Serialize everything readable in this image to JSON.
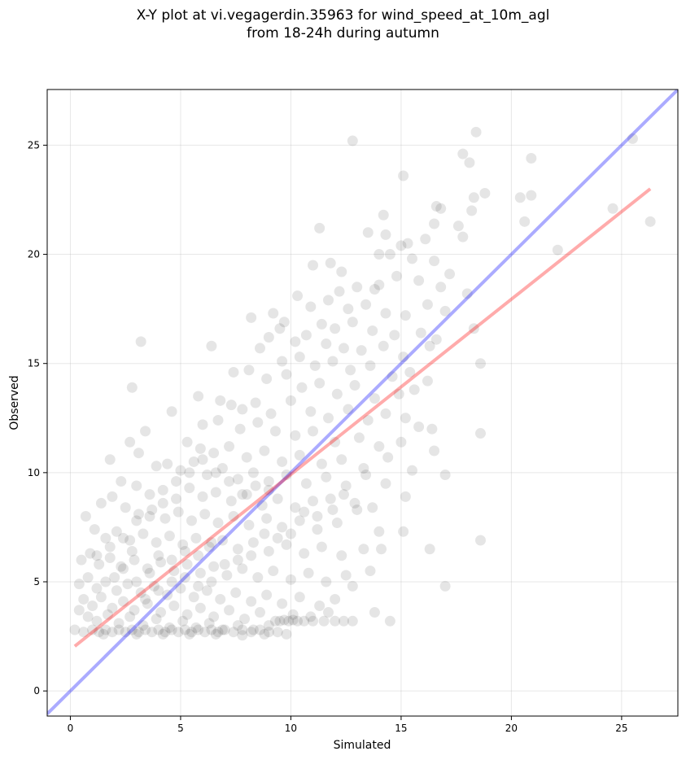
{
  "chart_data": {
    "type": "scatter",
    "title_lines": [
      "X-Y plot at vi.vegagerdin.35963 for wind_speed_at_10m_agl",
      "from 18-24h during autumn"
    ],
    "xlabel": "Simulated",
    "ylabel": "Observed",
    "xlim": [
      -1.05,
      27.55
    ],
    "ylim": [
      -1.15,
      27.55
    ],
    "xticks": [
      0,
      5,
      10,
      15,
      20,
      25
    ],
    "yticks": [
      0,
      5,
      10,
      15,
      20,
      25
    ],
    "grid": true,
    "colors": {
      "points": "#000000",
      "identity_line": "#0000ff",
      "fit_line": "#ff0000",
      "grid": "#b0b0b0"
    },
    "identity_line": {
      "x": [
        -1.05,
        27.55
      ],
      "y": [
        -1.05,
        27.55
      ]
    },
    "fit_line": {
      "x": [
        0.2,
        26.3
      ],
      "y": [
        2.05,
        23.0
      ]
    },
    "points": [
      [
        12.8,
        25.2
      ],
      [
        17.8,
        24.6
      ],
      [
        18.4,
        25.6
      ],
      [
        18.1,
        24.2
      ],
      [
        20.9,
        24.4
      ],
      [
        25.5,
        25.3
      ],
      [
        15.1,
        23.6
      ],
      [
        18.3,
        22.6
      ],
      [
        18.8,
        22.8
      ],
      [
        20.4,
        22.6
      ],
      [
        20.9,
        22.7
      ],
      [
        24.6,
        22.1
      ],
      [
        16.6,
        22.2
      ],
      [
        16.8,
        22.1
      ],
      [
        18.2,
        22.0
      ],
      [
        14.2,
        21.8
      ],
      [
        16.5,
        21.4
      ],
      [
        17.6,
        21.3
      ],
      [
        17.8,
        20.8
      ],
      [
        20.6,
        21.5
      ],
      [
        26.3,
        21.5
      ],
      [
        11.3,
        21.2
      ],
      [
        13.5,
        21.0
      ],
      [
        14.3,
        20.9
      ],
      [
        15.0,
        20.4
      ],
      [
        15.3,
        20.5
      ],
      [
        16.1,
        20.7
      ],
      [
        14.0,
        20.0
      ],
      [
        14.5,
        20.0
      ],
      [
        15.5,
        19.8
      ],
      [
        16.5,
        19.7
      ],
      [
        22.1,
        20.2
      ],
      [
        11.0,
        19.5
      ],
      [
        11.8,
        19.6
      ],
      [
        12.3,
        19.2
      ],
      [
        13.0,
        18.5
      ],
      [
        13.8,
        18.4
      ],
      [
        14.0,
        18.6
      ],
      [
        14.8,
        19.0
      ],
      [
        15.8,
        18.8
      ],
      [
        17.2,
        19.1
      ],
      [
        16.8,
        18.5
      ],
      [
        18.0,
        18.2
      ],
      [
        12.2,
        18.3
      ],
      [
        10.3,
        18.1
      ],
      [
        10.9,
        17.6
      ],
      [
        11.7,
        17.9
      ],
      [
        12.6,
        17.5
      ],
      [
        13.4,
        17.7
      ],
      [
        14.3,
        17.3
      ],
      [
        15.2,
        17.2
      ],
      [
        16.2,
        17.7
      ],
      [
        17.0,
        17.4
      ],
      [
        8.2,
        17.1
      ],
      [
        9.2,
        17.3
      ],
      [
        9.7,
        16.9
      ],
      [
        11.4,
        16.8
      ],
      [
        12.0,
        16.6
      ],
      [
        12.8,
        16.9
      ],
      [
        13.7,
        16.5
      ],
      [
        14.7,
        16.3
      ],
      [
        15.9,
        16.4
      ],
      [
        16.6,
        16.1
      ],
      [
        18.3,
        16.6
      ],
      [
        9.0,
        16.2
      ],
      [
        9.5,
        16.6
      ],
      [
        10.2,
        16.0
      ],
      [
        10.7,
        16.3
      ],
      [
        11.6,
        15.9
      ],
      [
        12.4,
        15.7
      ],
      [
        13.2,
        15.6
      ],
      [
        14.2,
        15.8
      ],
      [
        15.1,
        15.3
      ],
      [
        16.3,
        15.8
      ],
      [
        3.2,
        16.0
      ],
      [
        6.4,
        15.8
      ],
      [
        8.6,
        15.7
      ],
      [
        9.6,
        15.1
      ],
      [
        10.4,
        15.3
      ],
      [
        11.1,
        14.9
      ],
      [
        11.9,
        15.1
      ],
      [
        12.7,
        14.7
      ],
      [
        13.6,
        14.9
      ],
      [
        14.6,
        14.4
      ],
      [
        15.4,
        14.6
      ],
      [
        16.2,
        14.2
      ],
      [
        18.6,
        15.0
      ],
      [
        7.4,
        14.6
      ],
      [
        8.1,
        14.7
      ],
      [
        8.9,
        14.3
      ],
      [
        9.8,
        14.5
      ],
      [
        10.5,
        13.9
      ],
      [
        11.3,
        14.1
      ],
      [
        12.1,
        13.6
      ],
      [
        12.9,
        14.0
      ],
      [
        13.8,
        13.4
      ],
      [
        14.9,
        13.6
      ],
      [
        15.6,
        13.8
      ],
      [
        2.8,
        13.9
      ],
      [
        5.8,
        13.5
      ],
      [
        6.8,
        13.3
      ],
      [
        7.3,
        13.1
      ],
      [
        7.8,
        12.9
      ],
      [
        8.4,
        13.2
      ],
      [
        9.1,
        12.7
      ],
      [
        10.0,
        13.3
      ],
      [
        10.9,
        12.8
      ],
      [
        11.7,
        12.5
      ],
      [
        12.6,
        12.9
      ],
      [
        13.5,
        12.4
      ],
      [
        14.3,
        12.7
      ],
      [
        15.2,
        12.5
      ],
      [
        15.8,
        12.1
      ],
      [
        16.4,
        12.0
      ],
      [
        6.0,
        12.2
      ],
      [
        6.7,
        12.4
      ],
      [
        7.7,
        12.0
      ],
      [
        8.5,
        12.3
      ],
      [
        9.3,
        11.9
      ],
      [
        10.2,
        11.7
      ],
      [
        11.0,
        11.9
      ],
      [
        12.0,
        11.4
      ],
      [
        13.1,
        11.6
      ],
      [
        14.0,
        11.2
      ],
      [
        15.0,
        11.4
      ],
      [
        4.6,
        12.8
      ],
      [
        18.6,
        11.8
      ],
      [
        3.4,
        11.9
      ],
      [
        5.3,
        11.4
      ],
      [
        5.9,
        11.1
      ],
      [
        6.5,
        10.9
      ],
      [
        7.2,
        11.2
      ],
      [
        8.0,
        10.7
      ],
      [
        8.8,
        11.0
      ],
      [
        9.6,
        10.5
      ],
      [
        10.4,
        10.8
      ],
      [
        11.4,
        10.4
      ],
      [
        12.3,
        10.6
      ],
      [
        13.3,
        10.2
      ],
      [
        14.4,
        10.7
      ],
      [
        15.5,
        10.1
      ],
      [
        16.5,
        11.0
      ],
      [
        2.7,
        11.4
      ],
      [
        3.1,
        10.9
      ],
      [
        3.9,
        10.3
      ],
      [
        4.4,
        10.4
      ],
      [
        5.0,
        10.1
      ],
      [
        5.6,
        10.5
      ],
      [
        6.2,
        9.9
      ],
      [
        6.9,
        10.2
      ],
      [
        7.6,
        9.7
      ],
      [
        8.3,
        10.0
      ],
      [
        9.0,
        9.6
      ],
      [
        9.8,
        9.9
      ],
      [
        10.7,
        9.5
      ],
      [
        11.6,
        9.8
      ],
      [
        12.5,
        9.4
      ],
      [
        13.4,
        9.9
      ],
      [
        14.3,
        9.5
      ],
      [
        17.0,
        9.9
      ],
      [
        1.8,
        10.6
      ],
      [
        2.3,
        9.6
      ],
      [
        3.0,
        9.4
      ],
      [
        3.6,
        9.0
      ],
      [
        4.2,
        9.2
      ],
      [
        4.8,
        8.8
      ],
      [
        5.4,
        9.3
      ],
      [
        6.0,
        8.9
      ],
      [
        6.6,
        9.1
      ],
      [
        7.3,
        8.7
      ],
      [
        8.0,
        9.0
      ],
      [
        8.7,
        8.5
      ],
      [
        9.4,
        8.8
      ],
      [
        10.2,
        8.4
      ],
      [
        11.0,
        8.7
      ],
      [
        11.9,
        8.3
      ],
      [
        12.9,
        8.6
      ],
      [
        13.7,
        8.4
      ],
      [
        15.2,
        8.9
      ],
      [
        1.4,
        8.6
      ],
      [
        1.9,
        8.9
      ],
      [
        2.5,
        8.4
      ],
      [
        3.1,
        8.1
      ],
      [
        3.7,
        8.3
      ],
      [
        4.3,
        7.9
      ],
      [
        4.9,
        8.2
      ],
      [
        5.5,
        7.8
      ],
      [
        6.1,
        8.1
      ],
      [
        6.7,
        7.7
      ],
      [
        7.4,
        8.0
      ],
      [
        8.1,
        7.6
      ],
      [
        8.9,
        7.9
      ],
      [
        9.6,
        7.5
      ],
      [
        10.4,
        7.8
      ],
      [
        11.2,
        7.4
      ],
      [
        12.1,
        7.7
      ],
      [
        13.0,
        8.3
      ],
      [
        14.0,
        7.3
      ],
      [
        15.1,
        7.3
      ],
      [
        0.7,
        8.0
      ],
      [
        1.1,
        7.4
      ],
      [
        1.6,
        7.0
      ],
      [
        2.1,
        7.3
      ],
      [
        2.7,
        6.9
      ],
      [
        3.3,
        7.2
      ],
      [
        3.9,
        6.8
      ],
      [
        4.5,
        7.1
      ],
      [
        5.1,
        6.7
      ],
      [
        5.7,
        7.0
      ],
      [
        6.3,
        6.6
      ],
      [
        6.9,
        6.9
      ],
      [
        7.6,
        6.5
      ],
      [
        8.3,
        6.8
      ],
      [
        9.0,
        6.4
      ],
      [
        9.8,
        6.7
      ],
      [
        10.6,
        6.3
      ],
      [
        11.4,
        6.6
      ],
      [
        12.3,
        6.2
      ],
      [
        13.3,
        6.5
      ],
      [
        14.1,
        6.5
      ],
      [
        16.3,
        6.5
      ],
      [
        18.6,
        6.9
      ],
      [
        0.5,
        6.0
      ],
      [
        0.9,
        6.3
      ],
      [
        1.3,
        5.8
      ],
      [
        1.8,
        6.1
      ],
      [
        2.3,
        5.7
      ],
      [
        2.9,
        6.0
      ],
      [
        3.5,
        5.6
      ],
      [
        4.1,
        5.9
      ],
      [
        4.7,
        5.5
      ],
      [
        5.3,
        5.8
      ],
      [
        5.9,
        5.4
      ],
      [
        6.5,
        5.7
      ],
      [
        7.1,
        5.3
      ],
      [
        7.8,
        5.6
      ],
      [
        8.5,
        5.2
      ],
      [
        9.2,
        5.5
      ],
      [
        10.0,
        5.1
      ],
      [
        10.8,
        5.4
      ],
      [
        11.6,
        5.0
      ],
      [
        12.5,
        5.3
      ],
      [
        13.6,
        5.5
      ],
      [
        0.4,
        4.9
      ],
      [
        0.8,
        5.2
      ],
      [
        1.2,
        4.7
      ],
      [
        1.6,
        5.0
      ],
      [
        2.1,
        4.6
      ],
      [
        2.6,
        4.9
      ],
      [
        3.2,
        4.5
      ],
      [
        3.8,
        4.8
      ],
      [
        4.4,
        4.4
      ],
      [
        5.0,
        4.7
      ],
      [
        5.6,
        4.3
      ],
      [
        6.2,
        4.6
      ],
      [
        6.8,
        4.2
      ],
      [
        7.5,
        4.5
      ],
      [
        8.2,
        4.1
      ],
      [
        8.9,
        4.4
      ],
      [
        9.6,
        4.0
      ],
      [
        10.4,
        4.3
      ],
      [
        11.3,
        3.9
      ],
      [
        12.0,
        4.2
      ],
      [
        12.8,
        4.8
      ],
      [
        17.0,
        4.8
      ],
      [
        0.6,
        4.2
      ],
      [
        1.0,
        3.9
      ],
      [
        1.4,
        4.3
      ],
      [
        1.9,
        3.8
      ],
      [
        2.4,
        4.1
      ],
      [
        2.9,
        3.7
      ],
      [
        3.5,
        4.0
      ],
      [
        4.1,
        3.6
      ],
      [
        4.7,
        3.9
      ],
      [
        5.3,
        3.5
      ],
      [
        5.9,
        3.8
      ],
      [
        6.5,
        3.4
      ],
      [
        7.2,
        3.7
      ],
      [
        7.9,
        3.3
      ],
      [
        8.6,
        3.6
      ],
      [
        9.3,
        3.2
      ],
      [
        10.1,
        3.5
      ],
      [
        10.9,
        3.4
      ],
      [
        11.7,
        3.6
      ],
      [
        13.8,
        3.6
      ],
      [
        0.4,
        3.7
      ],
      [
        0.8,
        3.4
      ],
      [
        1.2,
        3.2
      ],
      [
        1.7,
        3.5
      ],
      [
        2.2,
        3.1
      ],
      [
        2.7,
        3.4
      ],
      [
        3.3,
        3.0
      ],
      [
        3.9,
        3.3
      ],
      [
        4.5,
        2.9
      ],
      [
        5.1,
        3.2
      ],
      [
        5.7,
        2.9
      ],
      [
        6.3,
        3.1
      ],
      [
        6.9,
        2.8
      ],
      [
        7.6,
        3.0
      ],
      [
        8.3,
        2.8
      ],
      [
        9.0,
        3.0
      ],
      [
        9.5,
        3.2
      ],
      [
        9.7,
        3.25
      ],
      [
        9.9,
        3.2
      ],
      [
        10.1,
        3.25
      ],
      [
        10.3,
        3.2
      ],
      [
        10.6,
        3.2
      ],
      [
        11.0,
        3.2
      ],
      [
        11.5,
        3.2
      ],
      [
        12.0,
        3.2
      ],
      [
        12.4,
        3.2
      ],
      [
        12.8,
        3.2
      ],
      [
        14.5,
        3.2
      ],
      [
        0.2,
        2.8
      ],
      [
        0.6,
        2.7
      ],
      [
        1.0,
        2.8
      ],
      [
        1.3,
        2.7
      ],
      [
        1.6,
        2.8
      ],
      [
        1.9,
        2.7
      ],
      [
        2.2,
        2.8
      ],
      [
        2.5,
        2.7
      ],
      [
        2.8,
        2.8
      ],
      [
        3.1,
        2.7
      ],
      [
        3.4,
        2.8
      ],
      [
        3.7,
        2.7
      ],
      [
        4.0,
        2.8
      ],
      [
        4.3,
        2.7
      ],
      [
        4.6,
        2.8
      ],
      [
        4.9,
        2.7
      ],
      [
        5.2,
        2.8
      ],
      [
        5.5,
        2.7
      ],
      [
        5.8,
        2.8
      ],
      [
        6.1,
        2.7
      ],
      [
        6.4,
        2.8
      ],
      [
        6.7,
        2.7
      ],
      [
        7.0,
        2.8
      ],
      [
        7.4,
        2.7
      ],
      [
        7.8,
        2.8
      ],
      [
        8.2,
        2.7
      ],
      [
        8.6,
        2.8
      ],
      [
        9.0,
        2.7
      ],
      [
        9.4,
        2.7
      ],
      [
        9.8,
        2.6
      ],
      [
        3.0,
        2.6
      ],
      [
        4.2,
        2.6
      ],
      [
        5.4,
        2.6
      ],
      [
        6.6,
        2.6
      ],
      [
        7.8,
        2.55
      ],
      [
        8.8,
        2.6
      ],
      [
        1.5,
        2.6
      ],
      [
        2.0,
        5.2
      ],
      [
        2.4,
        5.6
      ],
      [
        3.0,
        5.0
      ],
      [
        3.6,
        5.4
      ],
      [
        4.0,
        6.2
      ],
      [
        4.6,
        6.0
      ],
      [
        5.2,
        6.4
      ],
      [
        5.8,
        6.2
      ],
      [
        6.4,
        6.8
      ],
      [
        3.4,
        4.2
      ],
      [
        4.0,
        4.6
      ],
      [
        4.6,
        5.0
      ],
      [
        5.2,
        5.2
      ],
      [
        5.8,
        4.8
      ],
      [
        6.4,
        5.0
      ],
      [
        7.0,
        5.8
      ],
      [
        7.6,
        6.0
      ],
      [
        8.2,
        6.2
      ],
      [
        8.8,
        7.2
      ],
      [
        9.4,
        7.0
      ],
      [
        10.0,
        7.2
      ],
      [
        10.6,
        8.2
      ],
      [
        11.2,
        8.0
      ],
      [
        11.8,
        8.8
      ],
      [
        12.4,
        9.0
      ],
      [
        9.0,
        9.2
      ],
      [
        8.4,
        9.4
      ],
      [
        7.8,
        9.0
      ],
      [
        7.2,
        9.6
      ],
      [
        6.6,
        10.0
      ],
      [
        6.0,
        10.6
      ],
      [
        5.4,
        10.0
      ],
      [
        4.8,
        9.6
      ],
      [
        4.2,
        8.6
      ],
      [
        3.6,
        8.0
      ],
      [
        3.0,
        7.8
      ],
      [
        2.4,
        7.0
      ],
      [
        1.8,
        6.6
      ],
      [
        1.2,
        6.2
      ],
      [
        2.8,
        6.4
      ]
    ]
  }
}
